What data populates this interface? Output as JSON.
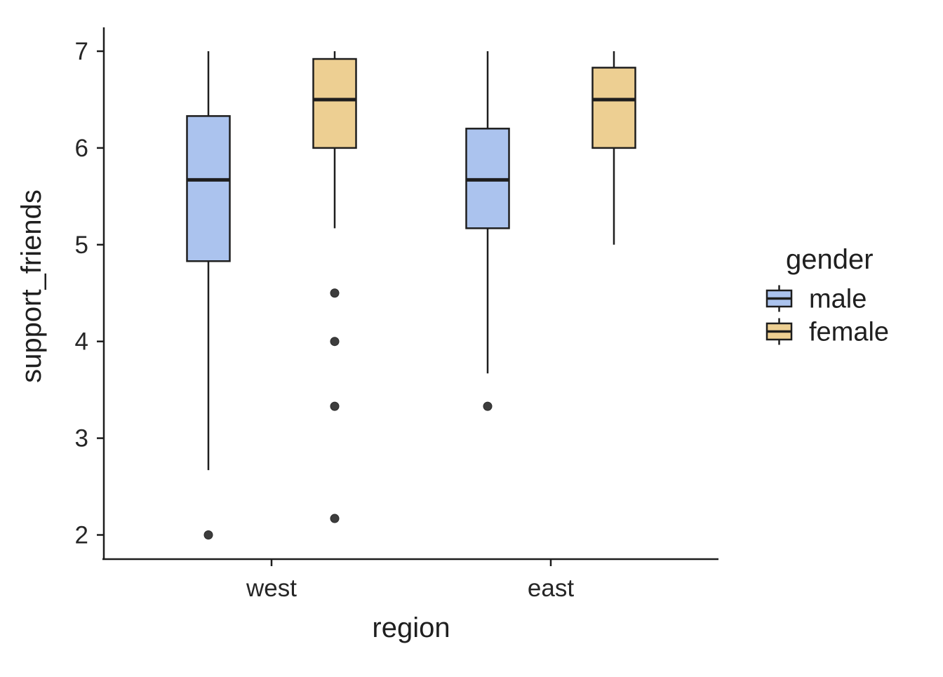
{
  "chart_data": {
    "type": "boxplot",
    "title": "",
    "xlabel": "region",
    "ylabel": "support_friends",
    "categories": [
      "west",
      "east"
    ],
    "y_ticks": [
      2,
      3,
      4,
      5,
      6,
      7
    ],
    "ylim": [
      1.75,
      7.25
    ],
    "grid": false,
    "legend": {
      "title": "gender",
      "position": "right",
      "entries": [
        {
          "label": "male",
          "color": "#abc3ee"
        },
        {
          "label": "female",
          "color": "#edcf92"
        }
      ]
    },
    "series": [
      {
        "name": "male",
        "fill": "#abc3ee",
        "boxes": [
          {
            "category": "west",
            "whisker_low": 2.67,
            "q1": 4.83,
            "median": 5.67,
            "q3": 6.33,
            "whisker_high": 7.0,
            "outliers": [
              2.0
            ]
          },
          {
            "category": "east",
            "whisker_low": 3.67,
            "q1": 5.17,
            "median": 5.67,
            "q3": 6.2,
            "whisker_high": 7.0,
            "outliers": [
              3.33
            ]
          }
        ]
      },
      {
        "name": "female",
        "fill": "#edcf92",
        "boxes": [
          {
            "category": "west",
            "whisker_low": 5.17,
            "q1": 6.0,
            "median": 6.5,
            "q3": 6.92,
            "whisker_high": 7.0,
            "outliers": [
              4.5,
              4.0,
              3.33,
              2.17
            ]
          },
          {
            "category": "east",
            "whisker_low": 5.0,
            "q1": 6.0,
            "median": 6.5,
            "q3": 6.83,
            "whisker_high": 7.0,
            "outliers": []
          }
        ]
      }
    ],
    "style": {
      "box_stroke": "#1e1e1e",
      "median_stroke": "#1e1e1e",
      "whisker_stroke": "#1e1e1e",
      "axis_stroke": "#1d1d1d",
      "outlier_fill": "#3d3d3d",
      "outlier_stroke": "#2a2a2a",
      "background": "#ffffff"
    }
  }
}
